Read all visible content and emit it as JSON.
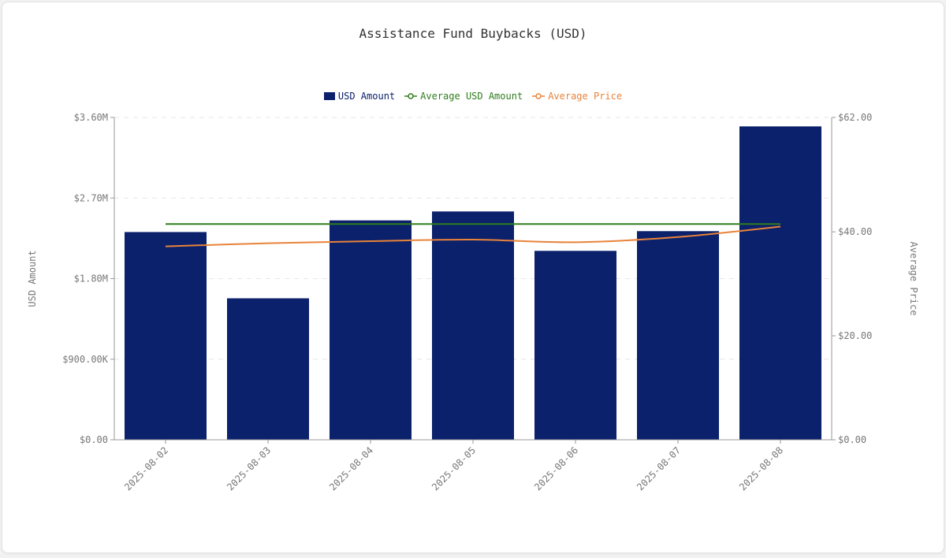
{
  "chart_data": {
    "type": "bar",
    "title": "Assistance Fund Buybacks (USD)",
    "categories": [
      "2025-08-02",
      "2025-08-03",
      "2025-08-04",
      "2025-08-05",
      "2025-08-06",
      "2025-08-07",
      "2025-08-08"
    ],
    "series": [
      {
        "name": "USD Amount",
        "type": "bar",
        "axis": "left",
        "color": "#0c216b",
        "values": [
          2320000,
          1580000,
          2450000,
          2550000,
          2110000,
          2330000,
          3500000
        ]
      },
      {
        "name": "Average USD Amount",
        "type": "line",
        "axis": "left",
        "color": "#2e7d1e",
        "values": [
          2410000,
          2410000,
          2410000,
          2410000,
          2410000,
          2410000,
          2410000
        ]
      },
      {
        "name": "Average Price",
        "type": "line",
        "axis": "right",
        "color": "#e8833a",
        "values": [
          37.2,
          37.8,
          38.2,
          38.5,
          38.0,
          39.0,
          41.0
        ]
      }
    ],
    "ylabel": "USD Amount",
    "y2label": "Average Price",
    "ylim": [
      0,
      3600000
    ],
    "y2lim": [
      0,
      62
    ],
    "yticks": [
      "$0.00",
      "$900.00K",
      "$1.80M",
      "$2.70M",
      "$3.60M"
    ],
    "y2ticks": [
      "$0.00",
      "$20.00",
      "$40.00",
      "$62.00"
    ],
    "y2tick_values": [
      0,
      20,
      40,
      62
    ],
    "grid": "horizontal-dashed",
    "legend_position": "top-center"
  }
}
